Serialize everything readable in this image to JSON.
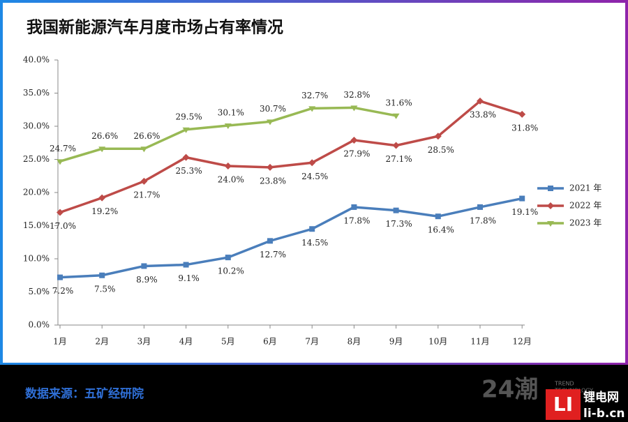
{
  "chart_data": {
    "type": "line",
    "title": "我国新能源汽车月度市场占有率情况",
    "categories": [
      "1月",
      "2月",
      "3月",
      "4月",
      "5月",
      "6月",
      "7月",
      "8月",
      "9月",
      "10月",
      "11月",
      "12月"
    ],
    "series": [
      {
        "name": "2021 年",
        "color": "#4a7ebb",
        "marker": "square",
        "values": [
          7.2,
          7.5,
          8.9,
          9.1,
          10.2,
          12.7,
          14.5,
          17.8,
          17.3,
          16.4,
          17.8,
          19.1
        ],
        "value_labels": [
          "7.2%",
          "7.5%",
          "8.9%",
          "9.1%",
          "10.2%",
          "12.7%",
          "14.5%",
          "17.8%",
          "17.3%",
          "16.4%",
          "17.8%",
          "19.1%"
        ]
      },
      {
        "name": "2022 年",
        "color": "#be4b48",
        "marker": "diamond",
        "values": [
          17.0,
          19.2,
          21.7,
          25.3,
          24.0,
          23.8,
          24.5,
          27.9,
          27.1,
          28.5,
          33.8,
          31.8
        ],
        "value_labels": [
          "17.0%",
          "19.2%",
          "21.7%",
          "25.3%",
          "24.0%",
          "23.8%",
          "24.5%",
          "27.9%",
          "27.1%",
          "28.5%",
          "33.8%",
          "31.8%"
        ]
      },
      {
        "name": "2023 年",
        "color": "#98b954",
        "marker": "triangle",
        "values": [
          24.7,
          26.6,
          26.6,
          29.5,
          30.1,
          30.7,
          32.7,
          32.8,
          31.6,
          null,
          null,
          null
        ],
        "value_labels": [
          "24.7%",
          "26.6%",
          "26.6%",
          "29.5%",
          "30.1%",
          "30.7%",
          "32.7%",
          "32.8%",
          "31.6%",
          null,
          null,
          null
        ]
      }
    ],
    "ylim": [
      0,
      40
    ],
    "yticks": [
      {
        "value": 0,
        "label": "0.0%"
      },
      {
        "value": 5,
        "label": "5.0%"
      },
      {
        "value": 10,
        "label": "10.0%"
      },
      {
        "value": 15,
        "label": "15.0%"
      },
      {
        "value": 20,
        "label": "20.0%"
      },
      {
        "value": 25,
        "label": "25.0%"
      },
      {
        "value": 30,
        "label": "30.0%"
      },
      {
        "value": 35,
        "label": "35.0%"
      },
      {
        "value": 40,
        "label": "40.0%"
      }
    ],
    "legend": "right"
  },
  "footer": {
    "source": "数据来源：五矿经研院",
    "logo1": "24潮",
    "logo1_sub1": "TREND",
    "logo1_sub2": "TECHNOLOGY",
    "logo2_mark": "LI",
    "logo2_name": "锂电网",
    "logo2_url": "li-b.cn"
  }
}
